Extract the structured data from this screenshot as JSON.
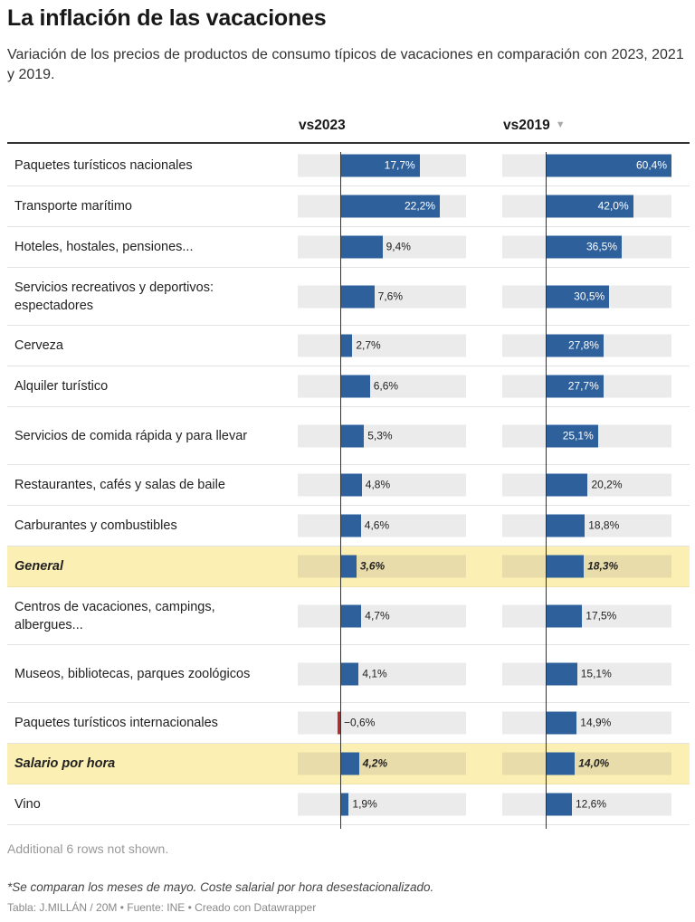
{
  "header": {
    "title": "La inflación de las vacaciones",
    "subtitle": "Variación de los precios de productos de consumo típicos de vacaciones en comparación con 2023, 2021 y 2019."
  },
  "columns": [
    {
      "label": "vs2023",
      "sort_icon": ""
    },
    {
      "label": "vs2019",
      "sort_icon": "▼"
    }
  ],
  "chart_data": {
    "type": "bar",
    "title": "La inflación de las vacaciones",
    "subtitle": "Variación de los precios de productos de consumo típicos de vacaciones en comparación con 2023, 2021 y 2019.",
    "unit": "%",
    "scales": {
      "vs2023": [
        -1,
        22.2
      ],
      "vs2019": [
        0,
        60.4
      ]
    },
    "categories": [
      "Paquetes turísticos nacionales",
      "Transporte marítimo",
      "Hoteles, hostales, pensiones...",
      "Servicios recreativos y deportivos: espectadores",
      "Cerveza",
      "Alquiler turístico",
      "Servicios de comida rápida y para llevar",
      "Restaurantes, cafés y salas de baile",
      "Carburantes y combustibles",
      "General",
      "Centros de vacaciones, campings, albergues...",
      "Museos, bibliotecas, parques zoológicos",
      "Paquetes turísticos internacionales",
      "Salario por hora",
      "Vino"
    ],
    "highlighted": [
      "General",
      "Salario por hora"
    ],
    "series": [
      {
        "name": "vs2023",
        "values": [
          17.7,
          22.2,
          9.4,
          7.6,
          2.7,
          6.6,
          5.3,
          4.8,
          4.6,
          3.6,
          4.7,
          4.1,
          -0.6,
          4.2,
          1.9
        ],
        "labels": [
          "17,7%",
          "22,2%",
          "9,4%",
          "7,6%",
          "2,7%",
          "6,6%",
          "5,3%",
          "4,8%",
          "4,6%",
          "3,6%",
          "4,7%",
          "4,1%",
          "−0,6%",
          "4,2%",
          "1,9%"
        ]
      },
      {
        "name": "vs2019",
        "values": [
          60.4,
          42.0,
          36.5,
          30.5,
          27.8,
          27.7,
          25.1,
          20.2,
          18.8,
          18.3,
          17.5,
          15.1,
          14.9,
          14.0,
          12.6
        ],
        "labels": [
          "60,4%",
          "42,0%",
          "36,5%",
          "30,5%",
          "27,8%",
          "27,7%",
          "25,1%",
          "20,2%",
          "18,8%",
          "18,3%",
          "17,5%",
          "15,1%",
          "14,9%",
          "14,0%",
          "12,6%"
        ]
      }
    ],
    "colors": {
      "bar": "#2e609c",
      "negative": "#c0282a",
      "highlight_row": "#fcefb4",
      "bar_background": "#ebebeb"
    }
  },
  "footer": {
    "more_rows": "Additional 6 rows not shown.",
    "note": "*Se comparan los meses de mayo. Coste salarial por hora desestacionalizado.",
    "source": "Tabla: J.MILLÁN / 20M • Fuente: INE • Creado con Datawrapper"
  }
}
